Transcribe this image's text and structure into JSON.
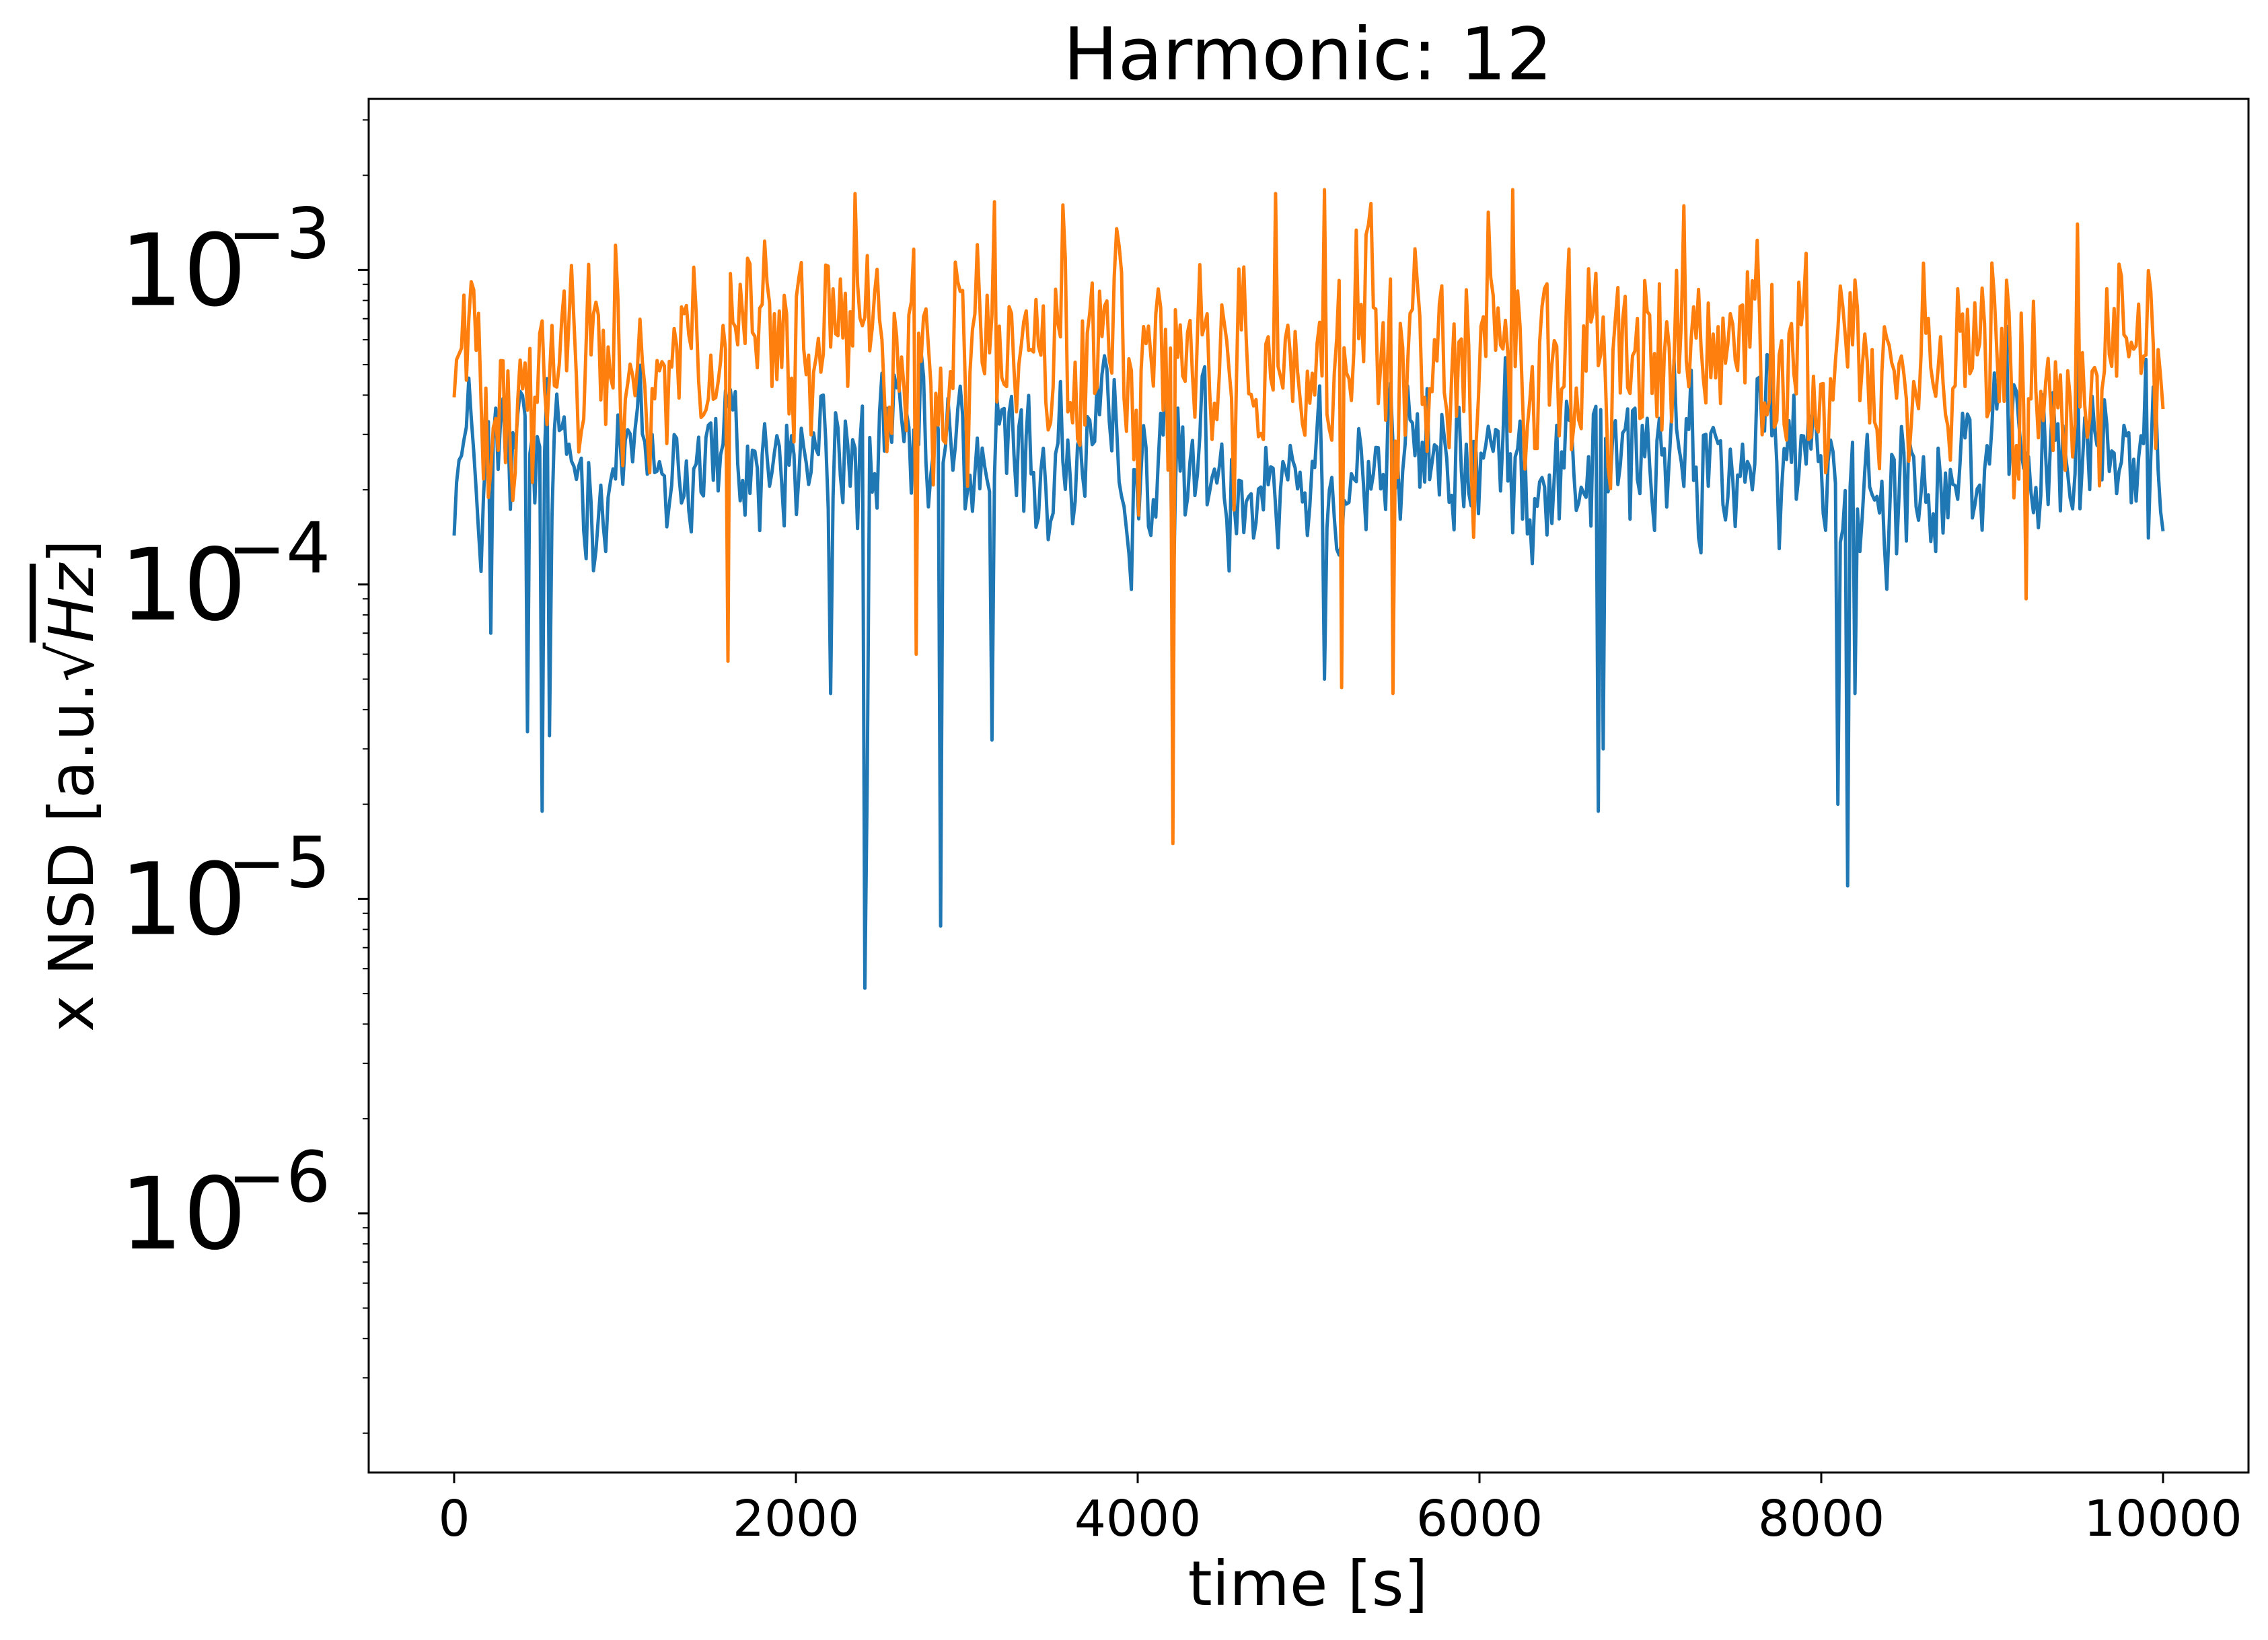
{
  "chart_data": {
    "type": "line",
    "title": "Harmonic: 12",
    "xlabel": "time [s]",
    "ylabel": {
      "prefix": "x NSD [a.u.",
      "sqrt_symbol": "√",
      "radicand": "Hz",
      "suffix": "]"
    },
    "xlim": [
      -500,
      10500
    ],
    "ylim": [
      1.5e-07,
      0.0035
    ],
    "yscale": "log",
    "grid": false,
    "xticks": [
      0,
      2000,
      4000,
      6000,
      8000,
      10000
    ],
    "xtick_labels": [
      "0",
      "2000",
      "4000",
      "6000",
      "8000",
      "10000"
    ],
    "yticks": [
      {
        "value": 1e-06,
        "base": "10",
        "exp": "−6"
      },
      {
        "value": 1e-05,
        "base": "10",
        "exp": "−5"
      },
      {
        "value": 0.0001,
        "base": "10",
        "exp": "−4"
      },
      {
        "value": 0.001,
        "base": "10",
        "exp": "−3"
      }
    ],
    "series": [
      {
        "color": "#1f77b4",
        "base": 0.000245,
        "spread": 0.42,
        "points": 700,
        "x_range": [
          0,
          10000
        ],
        "dips": [
          {
            "x": 160,
            "y": 0.00011
          },
          {
            "x": 220,
            "y": 7e-05
          },
          {
            "x": 430,
            "y": 3.4e-05
          },
          {
            "x": 520,
            "y": 1.9e-05
          },
          {
            "x": 560,
            "y": 3.3e-05
          },
          {
            "x": 2200,
            "y": 4.5e-05
          },
          {
            "x": 2400,
            "y": 5.2e-06
          },
          {
            "x": 2420,
            "y": 2.5e-05
          },
          {
            "x": 2850,
            "y": 8.2e-06
          },
          {
            "x": 3150,
            "y": 3.2e-05
          },
          {
            "x": 4200,
            "y": 7.5e-05
          },
          {
            "x": 5100,
            "y": 5e-05
          },
          {
            "x": 6700,
            "y": 1.9e-05
          },
          {
            "x": 6720,
            "y": 3e-05
          },
          {
            "x": 8100,
            "y": 2e-05
          },
          {
            "x": 8150,
            "y": 1.1e-05
          },
          {
            "x": 8200,
            "y": 4.5e-05
          }
        ],
        "peaks": [
          {
            "x": 9500,
            "y": 0.00055
          },
          {
            "x": 9900,
            "y": 0.00052
          }
        ]
      },
      {
        "color": "#ff7f0e",
        "base": 0.00052,
        "spread": 0.55,
        "points": 700,
        "x_range": [
          0,
          10000
        ],
        "dips": [
          {
            "x": 1600,
            "y": 5.7e-05
          },
          {
            "x": 2700,
            "y": 6e-05
          },
          {
            "x": 4200,
            "y": 1.5e-05
          },
          {
            "x": 5200,
            "y": 4.7e-05
          },
          {
            "x": 5500,
            "y": 4.5e-05
          },
          {
            "x": 9200,
            "y": 9e-05
          }
        ],
        "peaks": [
          {
            "x": 2350,
            "y": 0.00175
          },
          {
            "x": 4800,
            "y": 0.00175
          },
          {
            "x": 5100,
            "y": 0.0018
          },
          {
            "x": 6200,
            "y": 0.0018
          },
          {
            "x": 7200,
            "y": 0.0016
          },
          {
            "x": 9500,
            "y": 0.0014
          }
        ]
      }
    ]
  }
}
